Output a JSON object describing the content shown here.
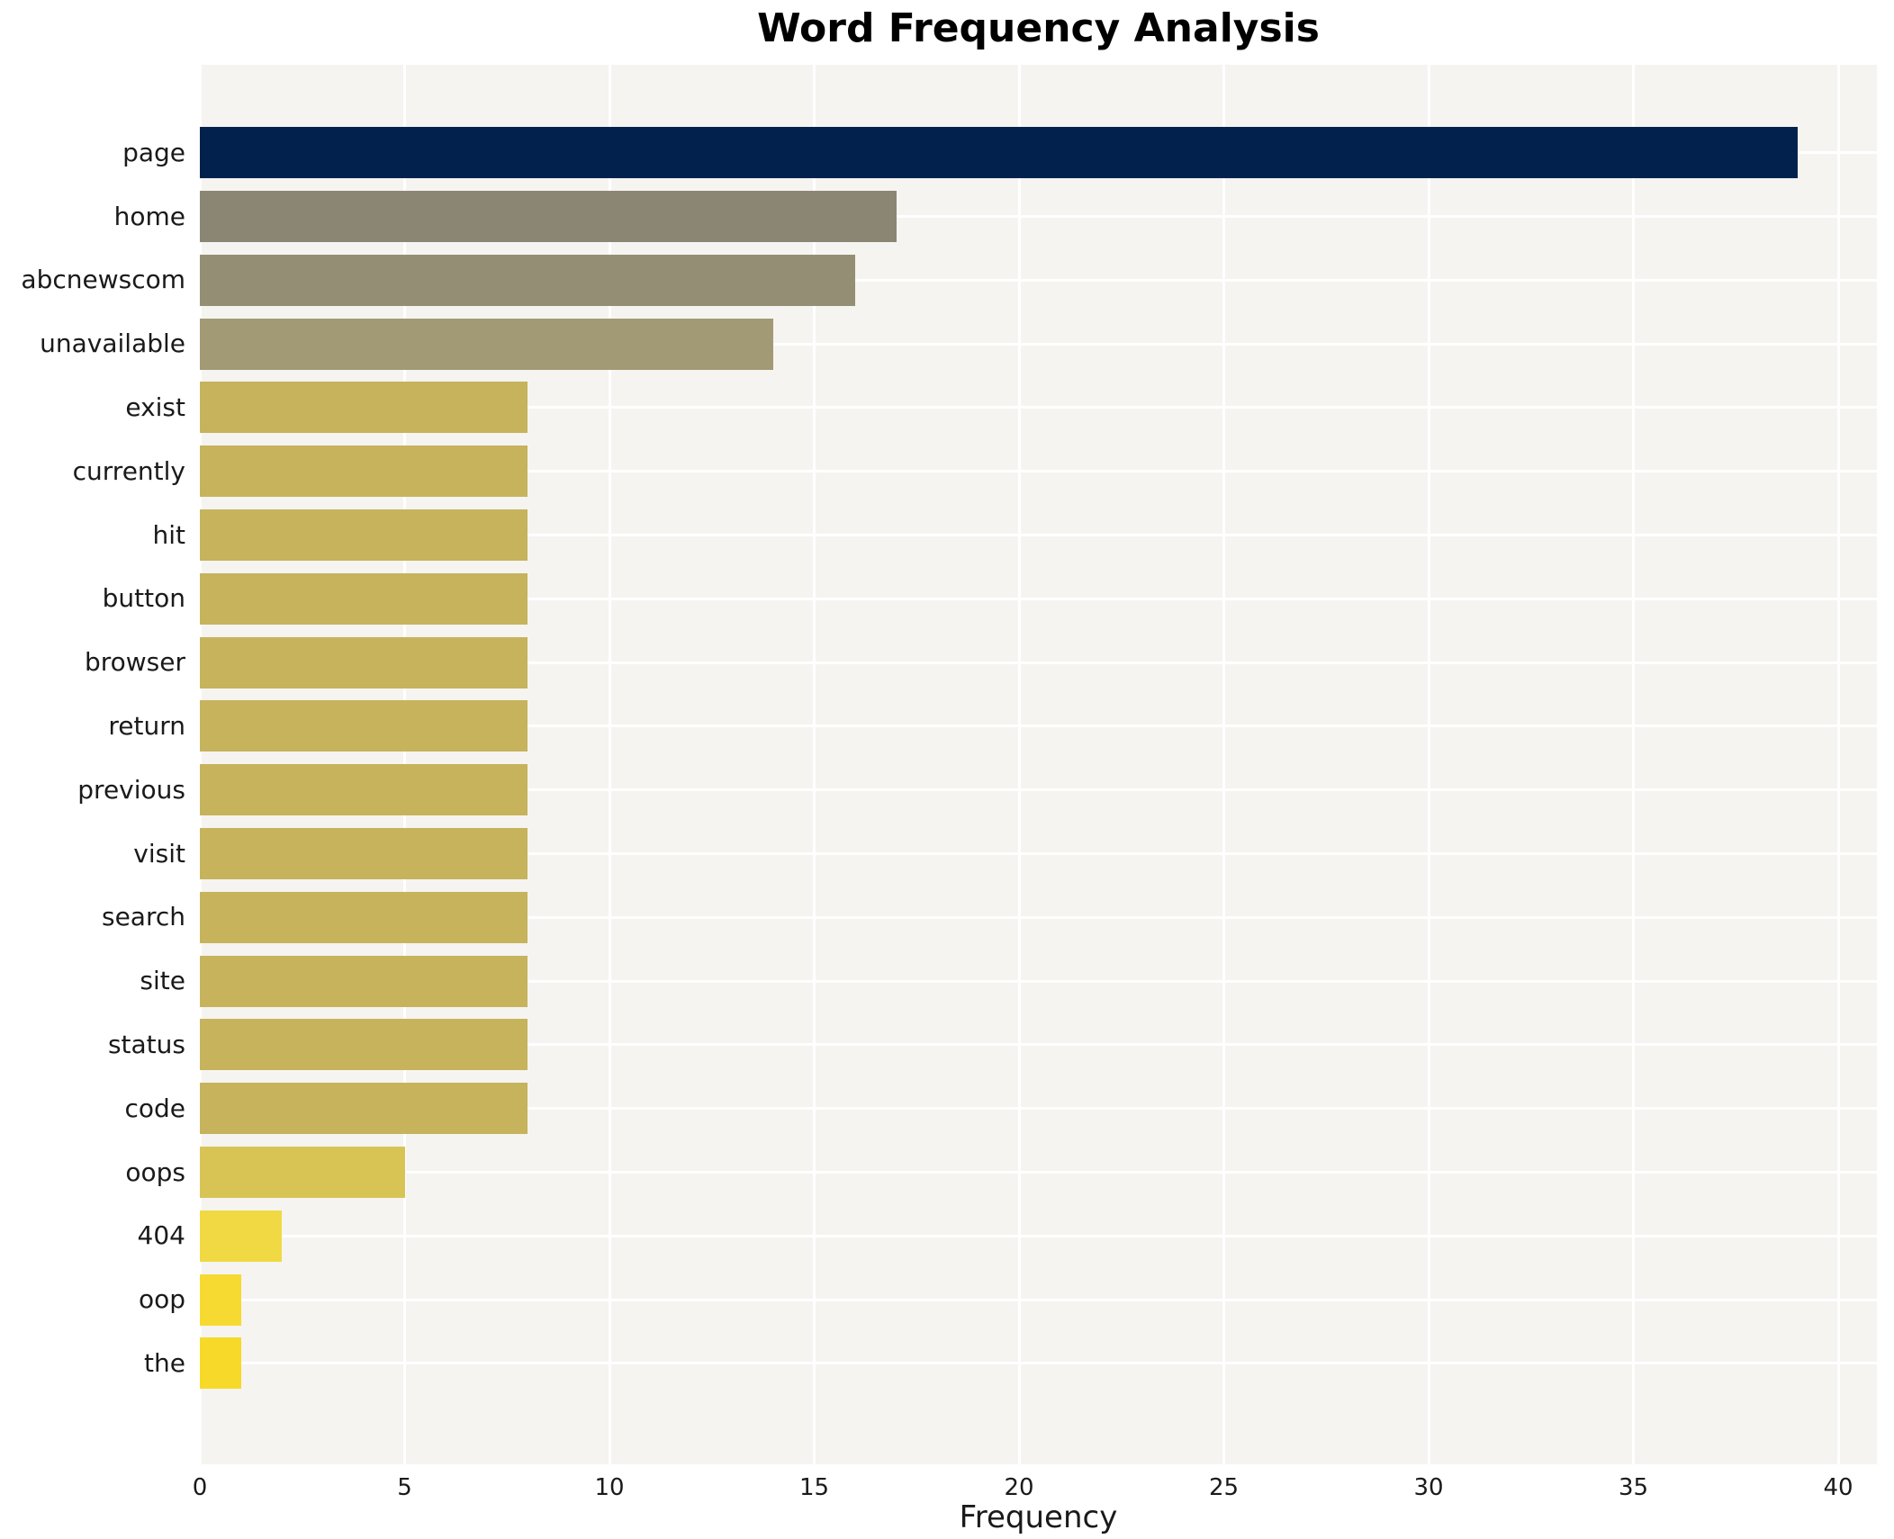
{
  "chart_data": {
    "type": "bar",
    "orientation": "horizontal",
    "title": "Word Frequency Analysis",
    "xlabel": "Frequency",
    "ylabel": "",
    "categories": [
      "page",
      "home",
      "abcnewscom",
      "unavailable",
      "exist",
      "currently",
      "hit",
      "button",
      "browser",
      "return",
      "previous",
      "visit",
      "search",
      "site",
      "status",
      "code",
      "oops",
      "404",
      "oop",
      "the"
    ],
    "values": [
      39,
      17,
      16,
      14,
      8,
      8,
      8,
      8,
      8,
      8,
      8,
      8,
      8,
      8,
      8,
      8,
      5,
      2,
      1,
      1
    ],
    "bar_colors": [
      "#02224d",
      "#8b8574",
      "#948e74",
      "#a29a74",
      "#c6b35c",
      "#c6b35c",
      "#c6b35c",
      "#c6b35c",
      "#c6b35c",
      "#c6b35c",
      "#c6b35c",
      "#c6b35c",
      "#c6b35c",
      "#c6b35c",
      "#c6b35c",
      "#c6b35c",
      "#d8c455",
      "#f0d943",
      "#f6da31",
      "#f7d929"
    ],
    "xlim": [
      0,
      41
    ],
    "xticks": [
      "0",
      "5",
      "10",
      "15",
      "20",
      "25",
      "30",
      "35",
      "40"
    ],
    "grid": true,
    "legend": "none",
    "plot_background": "#f5f4f1",
    "gridline_color": "#ffffff",
    "palette": "cividis"
  }
}
